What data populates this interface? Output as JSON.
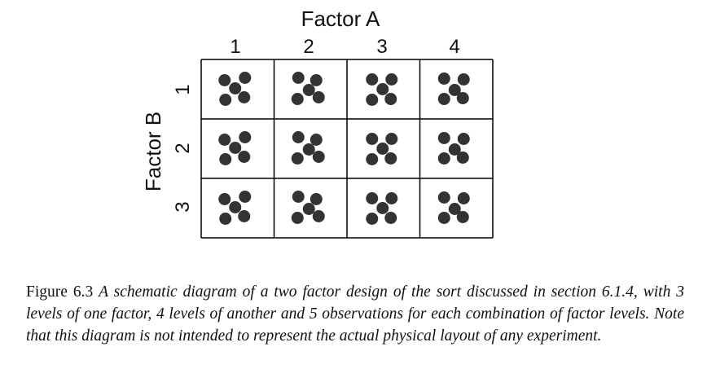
{
  "factor_a": {
    "title": "Factor A",
    "levels": [
      "1",
      "2",
      "3",
      "4"
    ]
  },
  "factor_b": {
    "title": "Factor B",
    "levels": [
      "1",
      "2",
      "3"
    ]
  },
  "observations_per_cell": 5,
  "colors": {
    "dot": "#333333",
    "grid_line": "#000000"
  },
  "caption": {
    "label": "Figure 6.3",
    "text": "A schematic diagram of a two factor design of the sort discussed in section 6.1.4, with 3 levels of one factor, 4 levels of another and 5 observations for each combination of factor levels. Note that this diagram is not intended to represent the actual physical layout of any experiment."
  }
}
